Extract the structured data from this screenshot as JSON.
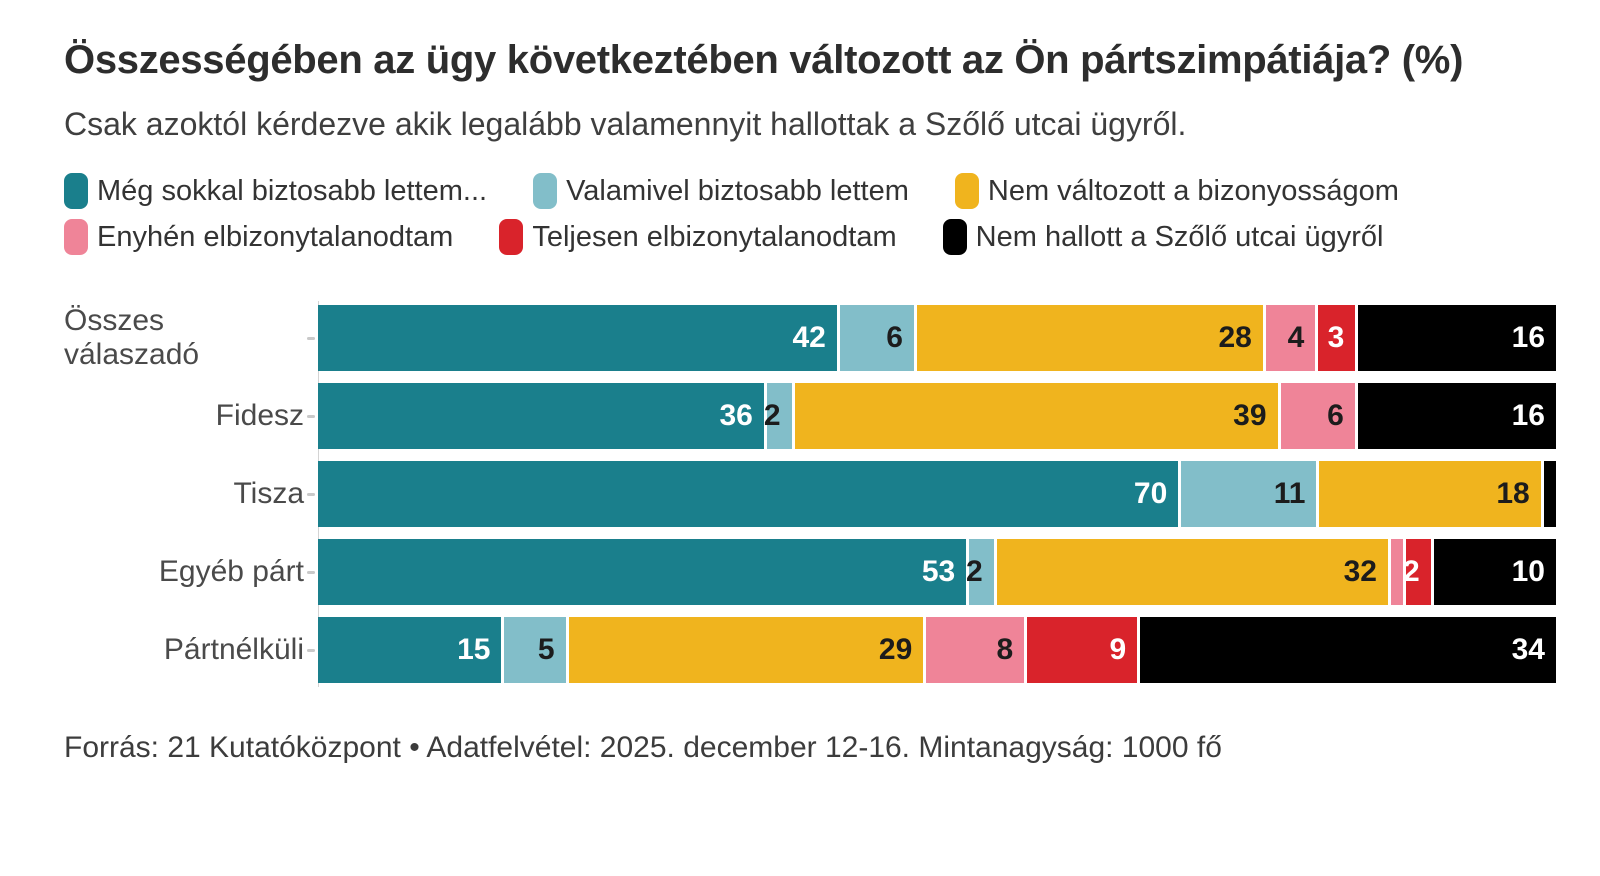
{
  "chart_data": {
    "type": "bar",
    "stacked": true,
    "orientation": "horizontal",
    "title": "Összességében az ügy következtében változott az Ön pártszimpátiája? (%)",
    "subtitle": "Csak azoktól kérdezve akik legalább valamennyit hallottak a Szőlő utcai ügyről.",
    "categories": [
      "Összes válaszadó",
      "Fidesz",
      "Tisza",
      "Egyéb párt",
      "Pártnélküli"
    ],
    "series": [
      {
        "name": "Még sokkal biztosabb lettem...",
        "color": "#1a7f8c",
        "value_text_color": "#ffffff",
        "values": [
          42,
          36,
          70,
          53,
          15
        ]
      },
      {
        "name": "Valamivel biztosabb lettem",
        "color": "#82bec9",
        "value_text_color": "#1c1c1c",
        "values": [
          6,
          2,
          11,
          2,
          5
        ]
      },
      {
        "name": "Nem változott a bizonyosságom",
        "color": "#f0b41e",
        "value_text_color": "#1c1c1c",
        "values": [
          28,
          39,
          18,
          32,
          29
        ]
      },
      {
        "name": "Enyhén elbizonytalanodtam",
        "color": "#ef8498",
        "value_text_color": "#1c1c1c",
        "values": [
          4,
          6,
          0,
          1,
          8
        ]
      },
      {
        "name": "Teljesen elbizonytalanodtam",
        "color": "#d9232b",
        "value_text_color": "#ffffff",
        "values": [
          3,
          0,
          0,
          2,
          9
        ]
      },
      {
        "name": "Nem hallott a Szőlő utcai ügyről",
        "color": "#000000",
        "value_text_color": "#ffffff",
        "values": [
          16,
          16,
          1,
          10,
          34
        ]
      }
    ],
    "value_label_min": 2,
    "xlim": [
      0,
      100
    ],
    "grid": false,
    "legend_position": "top",
    "legend_rows": [
      [
        0,
        1,
        2
      ],
      [
        3,
        4,
        5
      ]
    ]
  },
  "source_note": "Forrás: 21 Kutatóközpont • Adatfelvétel: 2025. december 12-16. Mintanagyság: 1000 fő"
}
